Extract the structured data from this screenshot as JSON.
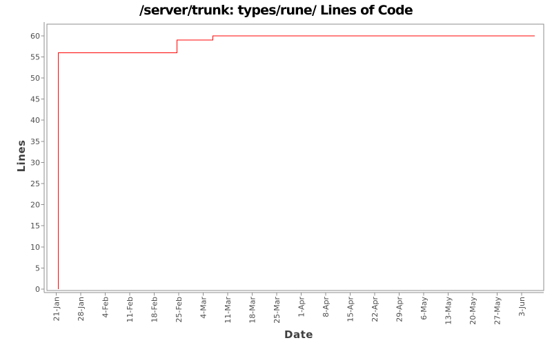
{
  "page": {
    "title": "/server/trunk: types/rune/ Lines of Code"
  },
  "chart_data": {
    "type": "line",
    "style": "step",
    "title": "/server/trunk: types/rune/ Lines of Code",
    "xlabel": "Date",
    "ylabel": "Lines",
    "x_tick_labels": [
      "21-Jan",
      "28-Jan",
      "4-Feb",
      "11-Feb",
      "18-Feb",
      "25-Feb",
      "4-Mar",
      "11-Mar",
      "18-Mar",
      "25-Mar",
      "1-Apr",
      "8-Apr",
      "15-Apr",
      "22-Apr",
      "29-Apr",
      "6-May",
      "13-May",
      "20-May",
      "27-May",
      "3-Jun"
    ],
    "x_tick_interval_days": 7,
    "y_ticks": [
      0,
      5,
      10,
      15,
      20,
      25,
      30,
      35,
      40,
      45,
      50,
      55,
      60
    ],
    "ylim": [
      0,
      63
    ],
    "grid": false,
    "legend": false,
    "series": [
      {
        "name": "Lines of Code",
        "color": "#ff0000",
        "points": [
          {
            "day": 0.6,
            "value": 0
          },
          {
            "day": 0.6,
            "value": 56
          },
          {
            "day": 34.5,
            "value": 56
          },
          {
            "day": 34.5,
            "value": 59
          },
          {
            "day": 44.8,
            "value": 59
          },
          {
            "day": 44.8,
            "value": 60
          },
          {
            "day": 136.8,
            "value": 60
          }
        ]
      }
    ]
  },
  "colors": {
    "series_line": "#ff0000",
    "axis_frame": "#8c8c8c",
    "tick_label": "#4d4d4d",
    "axis_title": "#404040",
    "chart_title": "#000000",
    "background": "#ffffff"
  }
}
